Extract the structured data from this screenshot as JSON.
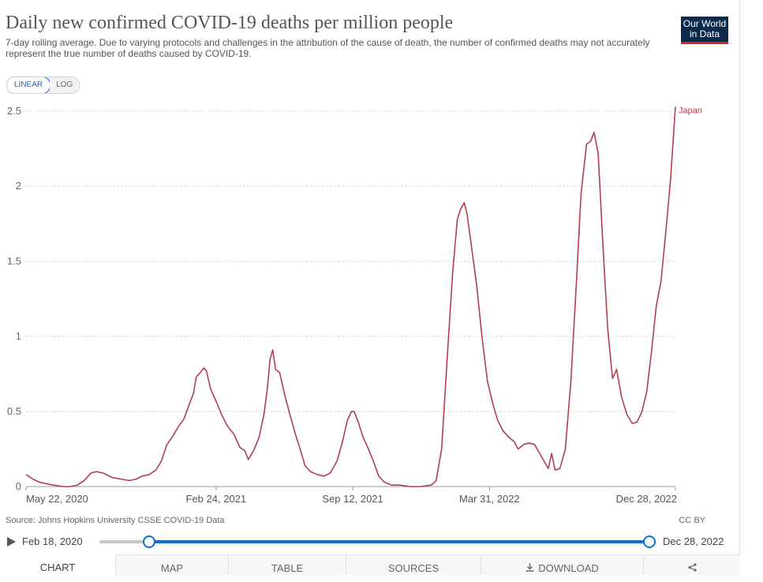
{
  "header": {
    "title": "Daily new confirmed COVID-19 deaths per million people",
    "subtitle": "7-day rolling average. Due to varying protocols and challenges in the attribution of the cause of death, the number of confirmed deaths may not accurately represent the true number of deaths caused by COVID-19.",
    "logo_line1": "Our World",
    "logo_line2": "in Data"
  },
  "scale_toggle": {
    "linear_label": "LINEAR",
    "log_label": "LOG",
    "selected": "LINEAR"
  },
  "footer": {
    "source": "Source: Johns Hopkins University CSSE COVID-19 Data",
    "license": "CC BY"
  },
  "timeline": {
    "start_label": "Feb 18, 2020",
    "end_label": "Dec 28, 2022",
    "selected_start_fraction": 0.09,
    "selected_end_fraction": 1.0
  },
  "tabs": {
    "chart": "CHART",
    "map": "MAP",
    "table": "TABLE",
    "sources": "SOURCES",
    "download": "DOWNLOAD"
  },
  "colors": {
    "series": "#b13f4f",
    "accent": "#0b6fd3",
    "logo_bg": "#0c2a4b",
    "logo_bar": "#d42b21"
  },
  "icons": {
    "download": "download-icon",
    "share": "share-icon",
    "play": "play-icon"
  },
  "chart_data": {
    "type": "line",
    "title": "Daily new confirmed COVID-19 deaths per million people",
    "xlabel": "",
    "ylabel": "",
    "x_ticks": [
      "May 22, 2020",
      "Feb 24, 2021",
      "Sep 12, 2021",
      "Mar 31, 2022",
      "Dec 28, 2022"
    ],
    "y_ticks": [
      "0",
      "0.5",
      "1",
      "1.5",
      "2",
      "2.5"
    ],
    "ylim": [
      0,
      2.5
    ],
    "xlim": [
      "2020-05-22",
      "2022-12-28"
    ],
    "grid": "horizontal dashed",
    "series": [
      {
        "name": "Japan",
        "points": [
          [
            "2020-05-22",
            0.08
          ],
          [
            "2020-06-01",
            0.05
          ],
          [
            "2020-06-10",
            0.03
          ],
          [
            "2020-06-20",
            0.02
          ],
          [
            "2020-07-01",
            0.01
          ],
          [
            "2020-07-15",
            0.0
          ],
          [
            "2020-07-25",
            0.0
          ],
          [
            "2020-08-05",
            0.01
          ],
          [
            "2020-08-15",
            0.04
          ],
          [
            "2020-08-25",
            0.09
          ],
          [
            "2020-09-02",
            0.1
          ],
          [
            "2020-09-12",
            0.09
          ],
          [
            "2020-09-25",
            0.06
          ],
          [
            "2020-10-08",
            0.05
          ],
          [
            "2020-10-20",
            0.04
          ],
          [
            "2020-10-30",
            0.05
          ],
          [
            "2020-11-08",
            0.07
          ],
          [
            "2020-11-18",
            0.08
          ],
          [
            "2020-11-28",
            0.11
          ],
          [
            "2020-12-06",
            0.17
          ],
          [
            "2020-12-14",
            0.28
          ],
          [
            "2020-12-22",
            0.33
          ],
          [
            "2020-12-31",
            0.4
          ],
          [
            "2021-01-08",
            0.45
          ],
          [
            "2021-01-16",
            0.55
          ],
          [
            "2021-01-22",
            0.62
          ],
          [
            "2021-01-26",
            0.73
          ],
          [
            "2021-02-01",
            0.76
          ],
          [
            "2021-02-06",
            0.79
          ],
          [
            "2021-02-10",
            0.77
          ],
          [
            "2021-02-16",
            0.65
          ],
          [
            "2021-02-24",
            0.57
          ],
          [
            "2021-03-05",
            0.47
          ],
          [
            "2021-03-13",
            0.4
          ],
          [
            "2021-03-22",
            0.35
          ],
          [
            "2021-03-31",
            0.26
          ],
          [
            "2021-04-07",
            0.24
          ],
          [
            "2021-04-12",
            0.18
          ],
          [
            "2021-04-20",
            0.24
          ],
          [
            "2021-04-28",
            0.33
          ],
          [
            "2021-05-05",
            0.48
          ],
          [
            "2021-05-10",
            0.65
          ],
          [
            "2021-05-14",
            0.85
          ],
          [
            "2021-05-18",
            0.91
          ],
          [
            "2021-05-22",
            0.78
          ],
          [
            "2021-05-28",
            0.76
          ],
          [
            "2021-06-05",
            0.6
          ],
          [
            "2021-06-12",
            0.48
          ],
          [
            "2021-06-20",
            0.35
          ],
          [
            "2021-06-27",
            0.25
          ],
          [
            "2021-07-04",
            0.14
          ],
          [
            "2021-07-12",
            0.1
          ],
          [
            "2021-07-22",
            0.08
          ],
          [
            "2021-08-01",
            0.07
          ],
          [
            "2021-08-10",
            0.09
          ],
          [
            "2021-08-20",
            0.17
          ],
          [
            "2021-08-28",
            0.3
          ],
          [
            "2021-09-04",
            0.44
          ],
          [
            "2021-09-10",
            0.5
          ],
          [
            "2021-09-14",
            0.5
          ],
          [
            "2021-09-20",
            0.43
          ],
          [
            "2021-09-27",
            0.33
          ],
          [
            "2021-10-05",
            0.25
          ],
          [
            "2021-10-12",
            0.17
          ],
          [
            "2021-10-20",
            0.07
          ],
          [
            "2021-10-28",
            0.03
          ],
          [
            "2021-11-08",
            0.01
          ],
          [
            "2021-11-20",
            0.01
          ],
          [
            "2021-12-05",
            0.0
          ],
          [
            "2021-12-20",
            0.0
          ],
          [
            "2022-01-05",
            0.01
          ],
          [
            "2022-01-12",
            0.04
          ],
          [
            "2022-01-20",
            0.25
          ],
          [
            "2022-01-28",
            0.85
          ],
          [
            "2022-02-05",
            1.42
          ],
          [
            "2022-02-12",
            1.78
          ],
          [
            "2022-02-17",
            1.85
          ],
          [
            "2022-02-22",
            1.89
          ],
          [
            "2022-02-26",
            1.82
          ],
          [
            "2022-03-04",
            1.62
          ],
          [
            "2022-03-12",
            1.35
          ],
          [
            "2022-03-20",
            1.0
          ],
          [
            "2022-03-28",
            0.7
          ],
          [
            "2022-04-05",
            0.55
          ],
          [
            "2022-04-12",
            0.44
          ],
          [
            "2022-04-20",
            0.37
          ],
          [
            "2022-04-28",
            0.33
          ],
          [
            "2022-05-06",
            0.3
          ],
          [
            "2022-05-12",
            0.25
          ],
          [
            "2022-05-20",
            0.28
          ],
          [
            "2022-05-28",
            0.29
          ],
          [
            "2022-06-05",
            0.28
          ],
          [
            "2022-06-15",
            0.2
          ],
          [
            "2022-06-25",
            0.12
          ],
          [
            "2022-06-30",
            0.22
          ],
          [
            "2022-07-05",
            0.11
          ],
          [
            "2022-07-12",
            0.12
          ],
          [
            "2022-07-20",
            0.25
          ],
          [
            "2022-07-28",
            0.7
          ],
          [
            "2022-08-05",
            1.35
          ],
          [
            "2022-08-12",
            1.95
          ],
          [
            "2022-08-20",
            2.28
          ],
          [
            "2022-08-26",
            2.3
          ],
          [
            "2022-08-31",
            2.36
          ],
          [
            "2022-09-06",
            2.22
          ],
          [
            "2022-09-13",
            1.6
          ],
          [
            "2022-09-20",
            1.05
          ],
          [
            "2022-09-27",
            0.72
          ],
          [
            "2022-10-03",
            0.78
          ],
          [
            "2022-10-10",
            0.6
          ],
          [
            "2022-10-18",
            0.48
          ],
          [
            "2022-10-26",
            0.42
          ],
          [
            "2022-11-02",
            0.43
          ],
          [
            "2022-11-09",
            0.5
          ],
          [
            "2022-11-16",
            0.63
          ],
          [
            "2022-11-23",
            0.9
          ],
          [
            "2022-11-30",
            1.2
          ],
          [
            "2022-12-07",
            1.37
          ],
          [
            "2022-12-14",
            1.7
          ],
          [
            "2022-12-21",
            2.05
          ],
          [
            "2022-12-28",
            2.53
          ]
        ]
      }
    ]
  }
}
